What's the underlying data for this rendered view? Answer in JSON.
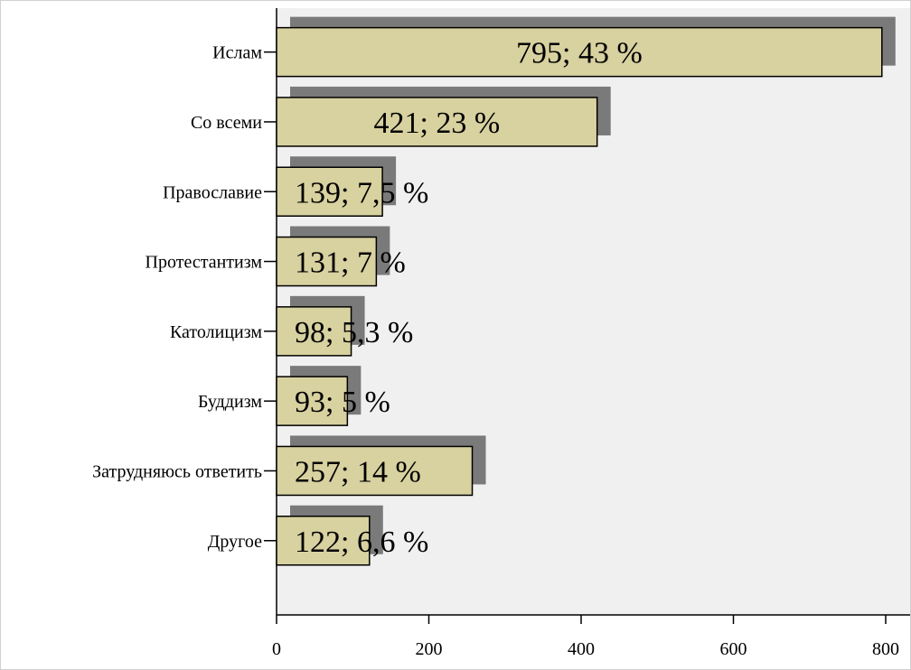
{
  "chart_data": {
    "type": "bar",
    "orientation": "horizontal",
    "categories": [
      "Ислам",
      "Со всеми",
      "Православие",
      "Протестантизм",
      "Католицизм",
      "Буддизм",
      "Затрудняюсь ответить",
      "Другое"
    ],
    "values": [
      795,
      421,
      139,
      131,
      98,
      93,
      257,
      122
    ],
    "data_labels": [
      "795; 43 %",
      "421; 23 %",
      "139; 7,5 %",
      "131; 7 %",
      "98; 5,3 %",
      "93; 5 %",
      "257; 14 %",
      "122; 6,6 %"
    ],
    "x_ticks": [
      "0",
      "200",
      "400",
      "600",
      "800"
    ],
    "xlim": [
      0,
      820
    ],
    "grid": false,
    "colors": {
      "bar_fill": "#d8d1a0",
      "bar_stroke": "#000000",
      "shadow": "#7a7a7a",
      "plot_background": "#f0f0f0"
    }
  }
}
